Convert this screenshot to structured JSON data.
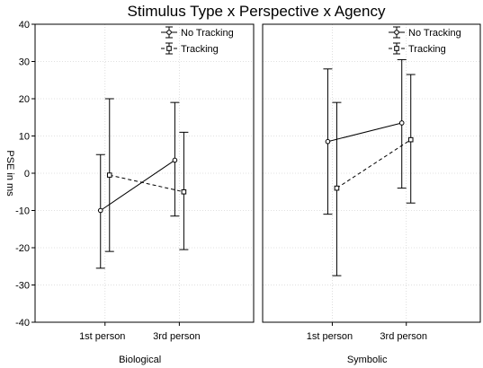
{
  "chart_data": {
    "type": "line",
    "title": "Stimulus Type x Perspective x Agency",
    "ylabel": "PSE in ms",
    "ylim": [
      -40,
      40
    ],
    "yticks": [
      -40,
      -30,
      -20,
      -10,
      0,
      10,
      20,
      30,
      40
    ],
    "categories": [
      "1st person",
      "3rd person"
    ],
    "grid": true,
    "legend_position": "top-right",
    "panels": [
      {
        "label": "Biological",
        "series": [
          {
            "name": "No Tracking",
            "marker": "circle",
            "line": "solid",
            "values": [
              -10,
              3.5
            ],
            "ci_low": [
              -25.5,
              -11.5
            ],
            "ci_high": [
              5,
              19
            ]
          },
          {
            "name": "Tracking",
            "marker": "square",
            "line": "dashed",
            "values": [
              -0.5,
              -5
            ],
            "ci_low": [
              -21,
              -20.5
            ],
            "ci_high": [
              20,
              11
            ]
          }
        ]
      },
      {
        "label": "Symbolic",
        "series": [
          {
            "name": "No Tracking",
            "marker": "circle",
            "line": "solid",
            "values": [
              8.5,
              13.5
            ],
            "ci_low": [
              -11,
              -4
            ],
            "ci_high": [
              28,
              30.5
            ]
          },
          {
            "name": "Tracking",
            "marker": "square",
            "line": "dashed",
            "values": [
              -4,
              9
            ],
            "ci_low": [
              -27.5,
              -8
            ],
            "ci_high": [
              19,
              26.5
            ]
          }
        ]
      }
    ]
  }
}
